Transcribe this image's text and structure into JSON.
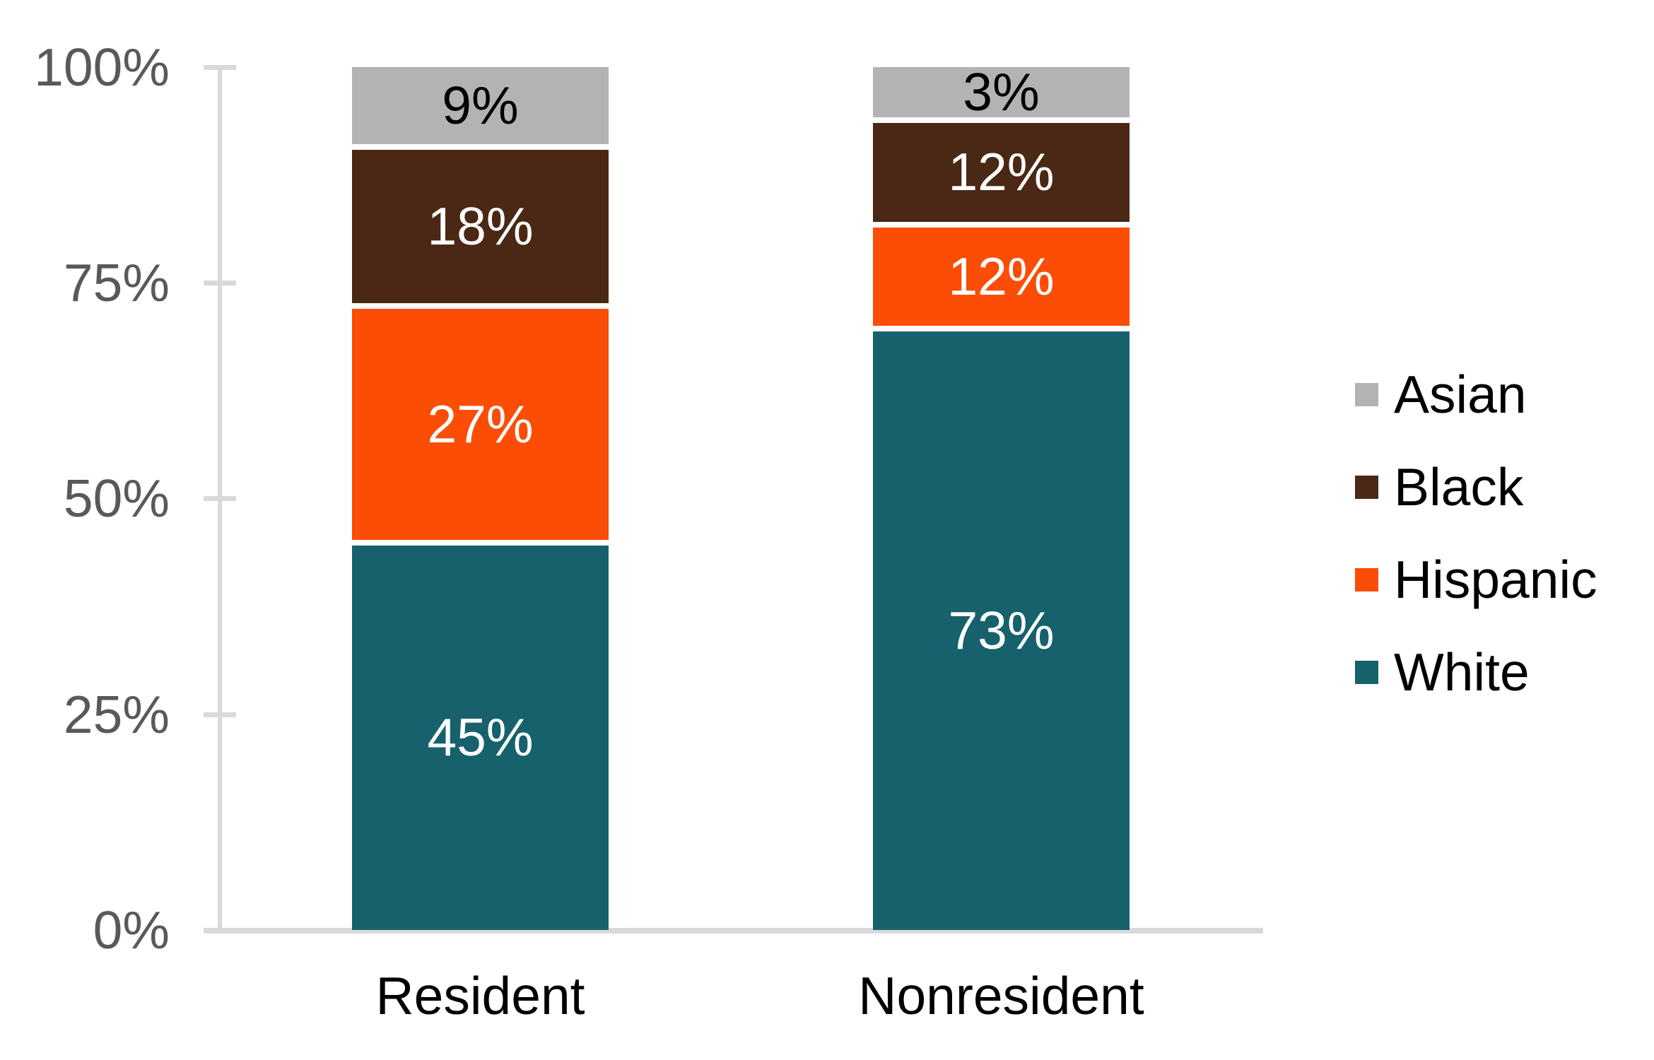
{
  "chart_data": {
    "type": "bar",
    "subtype": "stacked-percent-column",
    "title": "",
    "xlabel": "",
    "ylabel": "",
    "categories": [
      "Resident",
      "Nonresident"
    ],
    "series": [
      {
        "name": "Asian",
        "color": "#B3B3B3",
        "values": [
          9,
          3
        ],
        "labels": [
          "9%",
          "3%"
        ],
        "label_color": "#000000"
      },
      {
        "name": "Black",
        "color": "#4A2815",
        "values": [
          18,
          12
        ],
        "labels": [
          "18%",
          "12%"
        ],
        "label_color": "#FFFFFF"
      },
      {
        "name": "Hispanic",
        "color": "#FB4D05",
        "values": [
          27,
          12
        ],
        "labels": [
          "27%",
          "12%"
        ],
        "label_color": "#FFFFFF"
      },
      {
        "name": "White",
        "color": "#16616C",
        "values": [
          45,
          73
        ],
        "labels": [
          "45%",
          "73%"
        ],
        "label_color": "#FFFFFF"
      }
    ],
    "stack_order_top_to_bottom": [
      "Asian",
      "Black",
      "Hispanic",
      "White"
    ],
    "y_axis": {
      "tick_labels": [
        "100%",
        "75%",
        "50%",
        "25%",
        "0%"
      ],
      "min": 0,
      "max": 100,
      "grid": false,
      "tick_color": "#D9D9D9",
      "label_color": "#595959"
    },
    "legend": {
      "position": "right",
      "entries": [
        "Asian",
        "Black",
        "Hispanic",
        "White"
      ]
    }
  }
}
